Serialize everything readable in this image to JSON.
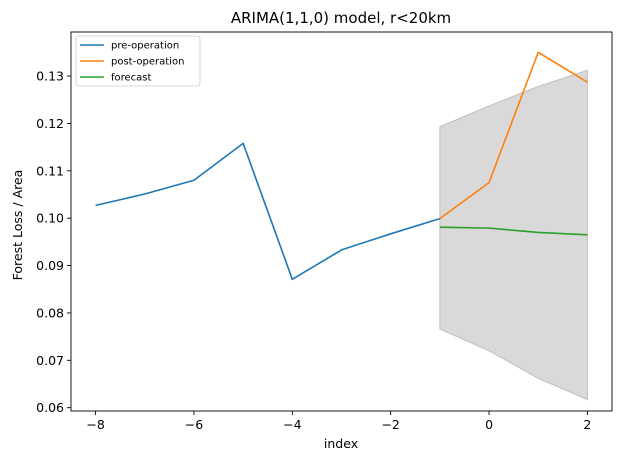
{
  "chart_data": {
    "type": "line",
    "title": "ARIMA(1,1,0) model, r<20km",
    "xlabel": "index",
    "ylabel": "Forest Loss / Area",
    "xlim": [
      -8.5,
      2.5
    ],
    "ylim": [
      0.0593,
      0.1393
    ],
    "x_ticks": [
      -8,
      -6,
      -4,
      -2,
      0,
      2
    ],
    "x_tick_labels": [
      "−8",
      "−6",
      "−4",
      "−2",
      "0",
      "2"
    ],
    "y_ticks": [
      0.06,
      0.07,
      0.08,
      0.09,
      0.1,
      0.11,
      0.12,
      0.13
    ],
    "y_tick_labels": [
      "0.06",
      "0.07",
      "0.08",
      "0.09",
      "0.10",
      "0.11",
      "0.12",
      "0.13"
    ],
    "grid": false,
    "legend_position": "top-left",
    "series": [
      {
        "name": "pre-operation",
        "color": "#1f77b4",
        "x": [
          -8,
          -7,
          -6,
          -5,
          -4,
          -3,
          -2,
          -1
        ],
        "y": [
          0.1027,
          0.1051,
          0.108,
          0.1158,
          0.0871,
          0.0933,
          0.0967,
          0.0999
        ]
      },
      {
        "name": "post-operation",
        "color": "#ff7f0e",
        "x": [
          -1,
          0,
          1,
          2
        ],
        "y": [
          0.0999,
          0.1075,
          0.135,
          0.1287
        ]
      },
      {
        "name": "forecast",
        "color": "#2ca02c",
        "x": [
          -1,
          0,
          1,
          2
        ],
        "y": [
          0.0981,
          0.0979,
          0.097,
          0.0965
        ]
      }
    ],
    "confidence_band": {
      "color": "#d9d9d9",
      "edge_color": "#bfbfbf",
      "x": [
        -1,
        0,
        1,
        2
      ],
      "upper": [
        0.1193,
        0.1237,
        0.1278,
        0.1312
      ],
      "lower": [
        0.0766,
        0.072,
        0.0662,
        0.0617
      ]
    }
  }
}
